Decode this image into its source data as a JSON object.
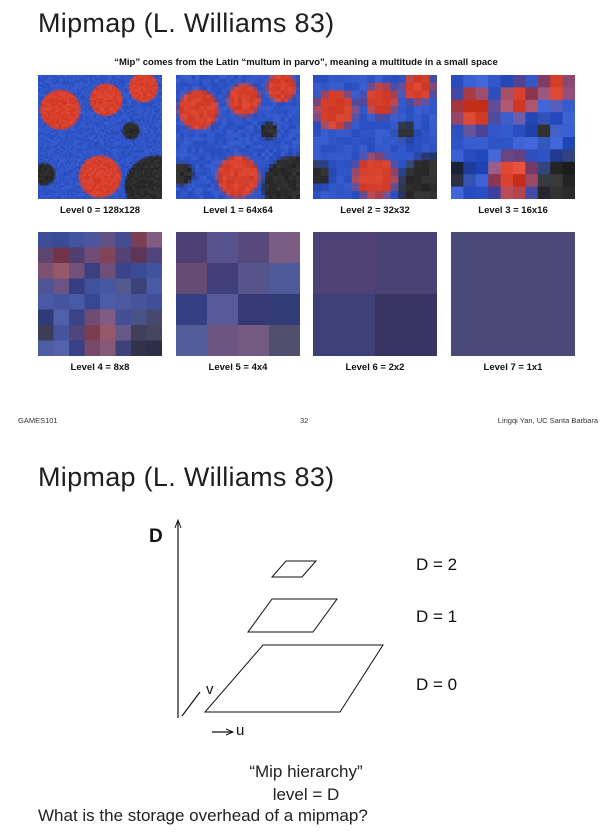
{
  "slide1": {
    "title": "Mipmap (L. Williams 83)",
    "subtitle": "“Mip” comes from the Latin “multum in parvo\", meaning a multitude in a small space",
    "levels": [
      {
        "label": "Level 0 = 128x128",
        "grid": 64
      },
      {
        "label": "Level 1 = 64x64",
        "grid": 32
      },
      {
        "label": "Level 2 = 32x32",
        "grid": 16
      },
      {
        "label": "Level 3 = 16x16",
        "grid": 10
      },
      {
        "label": "Level 4 = 8x8",
        "grid": 8
      },
      {
        "label": "Level 5 = 4x4",
        "grid": 4
      },
      {
        "label": "Level 6 = 2x2",
        "grid": 2
      },
      {
        "label": "Level 7 = 1x1",
        "grid": 1
      }
    ],
    "footer": {
      "left": "GAMES101",
      "center": "32",
      "right": "Lingqi Yan, UC Santa Barbara"
    }
  },
  "slide2": {
    "title": "Mipmap (L. Williams 83)",
    "axis_d": "D",
    "axis_u": "u",
    "axis_v": "v",
    "labels": [
      "D = 2",
      "D = 1",
      "D = 0"
    ],
    "caption1": "“Mip hierarchy”",
    "caption2": "level = D",
    "question": "What is the storage overhead of a mipmap?"
  },
  "colors": {
    "blue": "#2f55c8",
    "red": "#d8402e",
    "dark": "#2c2c2c",
    "avg": "#4a4a78"
  }
}
